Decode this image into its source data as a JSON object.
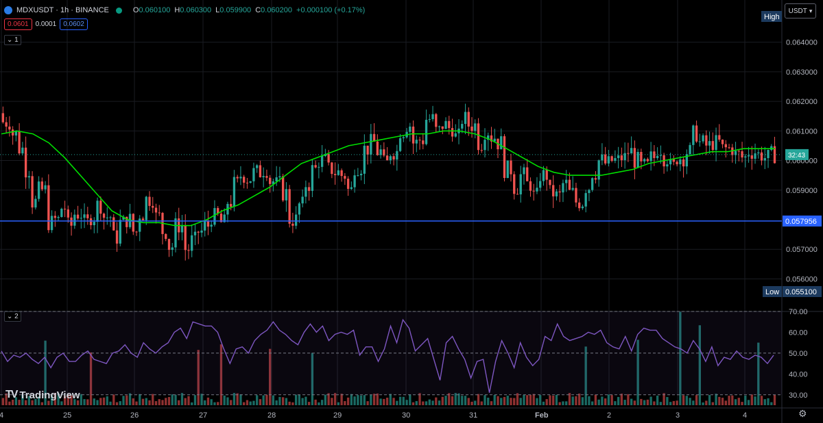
{
  "header": {
    "symbol": "MDXUSDT · 1h · BINANCE",
    "o_label": "O",
    "o_value": "0.060100",
    "h_label": "H",
    "h_value": "0.060300",
    "l_label": "L",
    "l_value": "0.059900",
    "c_label": "C",
    "c_value": "0.060200",
    "change": "+0.000100 (+0.17%)",
    "sell_price": "0.0601",
    "spread": "0.0001",
    "buy_price": "0.0602",
    "main_pane_collapse": "1",
    "rsi_pane_collapse": "2"
  },
  "currency": "USDT",
  "brand": "TradingView",
  "colors": {
    "up": "#26a69a",
    "down": "#ef5350",
    "ma": "#00e100",
    "hline": "#2962ff",
    "rsi": "#7e57c2",
    "bg": "#000000",
    "grid": "#1a1c22"
  },
  "chart_data": [
    {
      "type": "candlestick",
      "title": "MDXUSDT · 1h · BINANCE",
      "ylim": [
        0.0549,
        0.0645
      ],
      "y_ticks": [
        "0.064000",
        "0.063000",
        "0.062000",
        "0.061000",
        "0.060000",
        "0.059000",
        "0.057000",
        "0.056000"
      ],
      "x_ticks": [
        "4",
        "25",
        "26",
        "27",
        "28",
        "29",
        "30",
        "31",
        "Feb",
        "2",
        "3",
        "4"
      ],
      "high_label": "High",
      "low_label": "Low",
      "low_value": "0.055100",
      "hline_value": "0.057956",
      "hline_label": "0.057956",
      "countdown_label": "32:43",
      "last_price": 0.0602,
      "close_series": [
        0.0613,
        0.0609,
        0.0604,
        0.0597,
        0.0586,
        0.059,
        0.0579,
        0.058,
        0.0584,
        0.0578,
        0.0582,
        0.0579,
        0.0581,
        0.0585,
        0.0581,
        0.0574,
        0.0579,
        0.058,
        0.0576,
        0.0582,
        0.0587,
        0.0581,
        0.0576,
        0.0571,
        0.0578,
        0.057,
        0.0573,
        0.0576,
        0.0578,
        0.0581,
        0.0579,
        0.0586,
        0.0592,
        0.0595,
        0.0594,
        0.0596,
        0.0597,
        0.0593,
        0.0592,
        0.0589,
        0.058,
        0.0585,
        0.0592,
        0.0597,
        0.06,
        0.0597,
        0.0596,
        0.0595,
        0.059,
        0.0598,
        0.0604,
        0.0606,
        0.0603,
        0.0599,
        0.0603,
        0.061,
        0.0612,
        0.0606,
        0.0607,
        0.0614,
        0.061,
        0.0612,
        0.0611,
        0.0608,
        0.0614,
        0.0612,
        0.0606,
        0.061,
        0.0608,
        0.0606,
        0.0597,
        0.0591,
        0.0595,
        0.0592,
        0.0588,
        0.0595,
        0.0589,
        0.0588,
        0.0592,
        0.0589,
        0.0586,
        0.0591,
        0.0596,
        0.06,
        0.0599,
        0.06,
        0.0601,
        0.0603,
        0.06,
        0.0598,
        0.0601,
        0.0604,
        0.0601,
        0.0598,
        0.0601,
        0.0603,
        0.0609,
        0.0606,
        0.0605,
        0.0606,
        0.0604,
        0.0604,
        0.0602,
        0.0601,
        0.0603,
        0.0602,
        0.0601,
        0.0602
      ],
      "ma_series": [
        0.0609,
        0.061,
        0.0609,
        0.0606,
        0.0601,
        0.0595,
        0.0589,
        0.0583,
        0.058,
        0.0579,
        0.0579,
        0.0578,
        0.0578,
        0.058,
        0.0583,
        0.0585,
        0.0588,
        0.0591,
        0.0595,
        0.0599,
        0.0601,
        0.0603,
        0.0605,
        0.0606,
        0.0607,
        0.0608,
        0.0609,
        0.0609,
        0.061,
        0.061,
        0.0609,
        0.0607,
        0.0604,
        0.0601,
        0.0598,
        0.0596,
        0.0595,
        0.0595,
        0.0595,
        0.0596,
        0.0597,
        0.0599,
        0.06,
        0.0601,
        0.0602,
        0.0603,
        0.0603,
        0.0604,
        0.0604,
        0.0604
      ]
    },
    {
      "type": "line",
      "name": "RSI",
      "ylim": [
        25,
        70
      ],
      "y_ticks": [
        "70.00",
        "60.00",
        "50.00",
        "40.00",
        "30.00"
      ],
      "bands": [
        70,
        50,
        30
      ],
      "values": [
        51,
        46,
        49,
        48,
        50,
        47,
        45,
        48,
        43,
        48,
        50,
        46,
        46,
        49,
        51,
        47,
        46,
        45,
        50,
        51,
        54,
        50,
        48,
        55,
        52,
        50,
        53,
        55,
        60,
        62,
        57,
        65,
        64,
        63,
        63,
        60,
        52,
        45,
        52,
        53,
        50,
        56,
        59,
        61,
        65,
        61,
        59,
        56,
        54,
        60,
        64,
        60,
        63,
        56,
        59,
        60,
        59,
        61,
        49,
        53,
        53,
        46,
        52,
        63,
        55,
        66,
        62,
        51,
        54,
        57,
        47,
        37,
        55,
        58,
        52,
        47,
        38,
        46,
        47,
        31,
        46,
        56,
        50,
        43,
        55,
        48,
        44,
        47,
        58,
        56,
        64,
        58,
        56,
        57,
        58,
        60,
        59,
        61,
        55,
        53,
        52,
        58,
        51,
        59,
        62,
        61,
        61,
        57,
        55,
        53,
        52,
        50,
        56,
        52,
        46,
        53,
        44,
        48,
        47,
        51,
        48,
        47,
        49,
        48,
        45,
        49
      ]
    }
  ]
}
